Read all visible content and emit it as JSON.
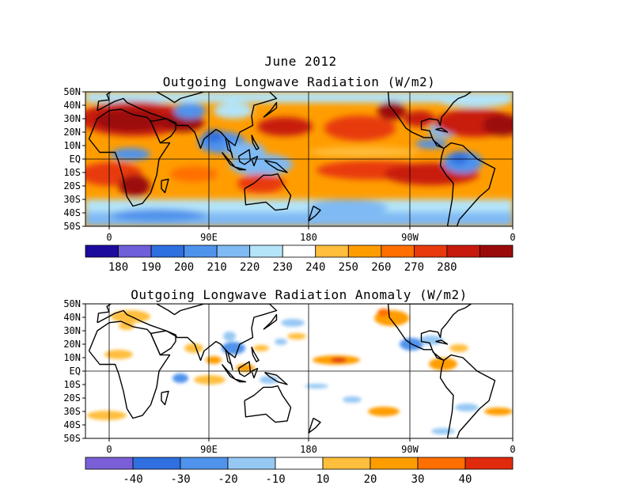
{
  "figure": {
    "title": "June 2012",
    "panel1_title": "Outgoing Longwave Radiation (W/m2)",
    "panel2_title": "Outgoing Longwave Radiation Anomaly (W/m2)"
  },
  "lat_labels": [
    "50N",
    "40N",
    "30N",
    "20N",
    "10N",
    "EQ",
    "10S",
    "20S",
    "30S",
    "40S",
    "50S"
  ],
  "lon_labels": [
    "0",
    "90E",
    "180",
    "90W",
    "0"
  ],
  "colorbar1": {
    "colors": [
      "#1d0b9e",
      "#6f5fd8",
      "#2f6fe0",
      "#4f93ec",
      "#7fbaf4",
      "#b4e4f8",
      "#ffffff",
      "#ffbe3c",
      "#ff9d00",
      "#ff6f00",
      "#e83a0c",
      "#c81a0c",
      "#9b0a0a"
    ],
    "labels": [
      "180",
      "190",
      "200",
      "210",
      "220",
      "230",
      "240",
      "250",
      "260",
      "270",
      "280"
    ]
  },
  "colorbar2": {
    "colors": [
      "#7b5fd8",
      "#2f6fe0",
      "#4f93ec",
      "#96c8f4",
      "#ffffff",
      "#ffbe3c",
      "#ff9d00",
      "#ff6f00",
      "#e02a0c"
    ],
    "labels": [
      "-40",
      "-30",
      "-20",
      "-10",
      "10",
      "20",
      "30",
      "40"
    ]
  }
}
